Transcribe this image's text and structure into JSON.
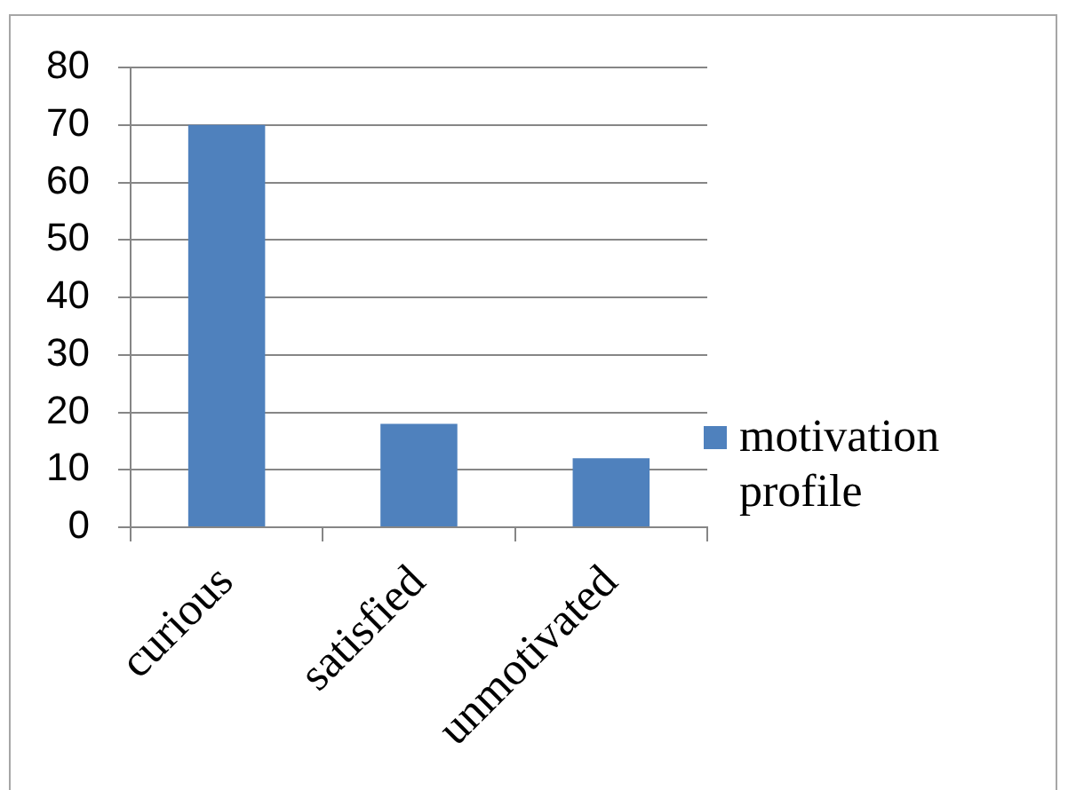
{
  "chart_data": {
    "type": "bar",
    "categories": [
      "curious",
      "satisfied",
      "unmotivated"
    ],
    "series": [
      {
        "name": "motivation profile",
        "color": "#4f81bd",
        "values": [
          70,
          18,
          12
        ]
      }
    ],
    "ylim": [
      0,
      80
    ],
    "yticks": [
      0,
      10,
      20,
      30,
      40,
      50,
      60,
      70,
      80
    ],
    "grid": "y",
    "legend": "right"
  }
}
